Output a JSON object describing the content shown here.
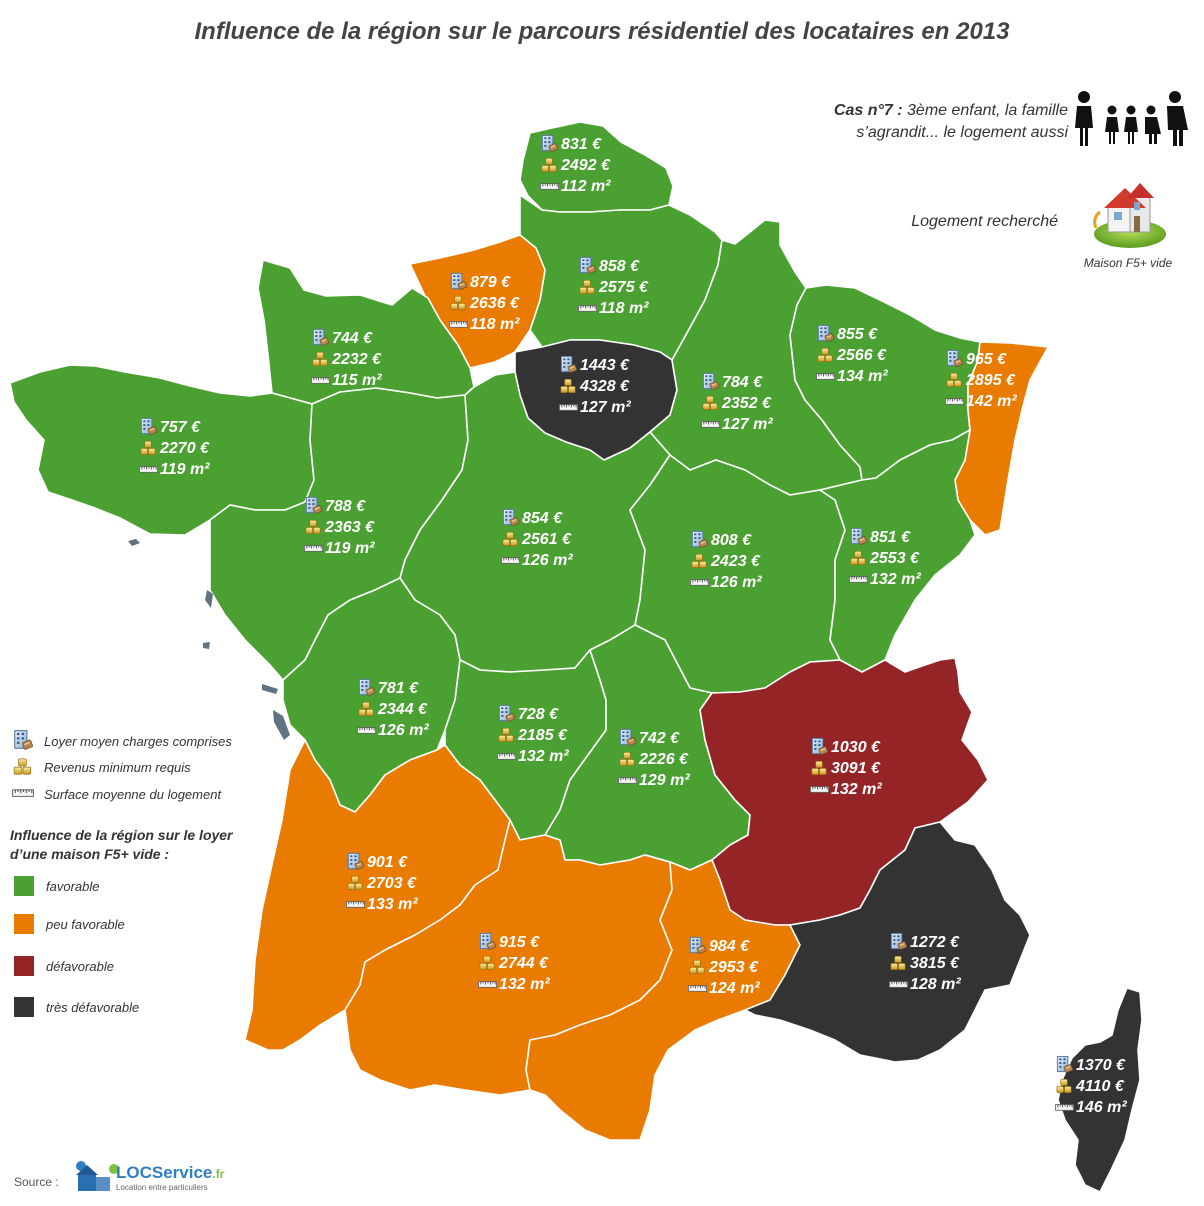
{
  "title": "Influence de la région sur le parcours résidentiel des locataires en 2013",
  "case": {
    "label": "Cas n°7 :",
    "text_line1": "3ème enfant, la famille",
    "text_line2": "s’agrandit... le logement aussi",
    "search_label": "Logement recherché",
    "house_caption": "Maison F5+ vide"
  },
  "legend": {
    "icons": [
      {
        "icon": "building-icon",
        "label": "Loyer moyen charges comprises"
      },
      {
        "icon": "coins-icon",
        "label": "Revenus minimum requis"
      },
      {
        "icon": "ruler-icon",
        "label": "Surface moyenne du logement"
      }
    ],
    "influence_title_line1": "Influence de la région sur le loyer",
    "influence_title_line2": "d’une maison F5+ vide :",
    "categories": [
      {
        "key": "favorable",
        "label": "favorable",
        "color": "#4ba032"
      },
      {
        "key": "peu_favorable",
        "label": "peu favorable",
        "color": "#e87b00"
      },
      {
        "key": "defavorable",
        "label": "défavorable",
        "color": "#952427"
      },
      {
        "key": "tres_defavorable",
        "label": "très défavorable",
        "color": "#333333"
      }
    ]
  },
  "colors": {
    "favorable": "#4ba032",
    "peu_favorable": "#e87b00",
    "defavorable": "#952427",
    "tres_defavorable": "#333333",
    "sea_islands": "#5f7383"
  },
  "regions": [
    {
      "id": "nord-pas-de-calais",
      "category": "favorable",
      "rent": "831 €",
      "income": "2492 €",
      "surface": "112 m²"
    },
    {
      "id": "picardie",
      "category": "favorable",
      "rent": "858 €",
      "income": "2575 €",
      "surface": "118 m²"
    },
    {
      "id": "haute-normandie",
      "category": "peu_favorable",
      "rent": "879 €",
      "income": "2636 €",
      "surface": "118 m²"
    },
    {
      "id": "basse-normandie",
      "category": "favorable",
      "rent": "744 €",
      "income": "2232 €",
      "surface": "115 m²"
    },
    {
      "id": "ile-de-france",
      "category": "tres_defavorable",
      "rent": "1443 €",
      "income": "4328 €",
      "surface": "127 m²"
    },
    {
      "id": "champagne-ardenne",
      "category": "favorable",
      "rent": "784 €",
      "income": "2352 €",
      "surface": "127 m²"
    },
    {
      "id": "lorraine",
      "category": "favorable",
      "rent": "855 €",
      "income": "2566 €",
      "surface": "134 m²"
    },
    {
      "id": "alsace",
      "category": "peu_favorable",
      "rent": "965 €",
      "income": "2895 €",
      "surface": "142 m²"
    },
    {
      "id": "bretagne",
      "category": "favorable",
      "rent": "757 €",
      "income": "2270 €",
      "surface": "119 m²"
    },
    {
      "id": "pays-de-la-loire",
      "category": "favorable",
      "rent": "788 €",
      "income": "2363 €",
      "surface": "119 m²"
    },
    {
      "id": "centre",
      "category": "favorable",
      "rent": "854 €",
      "income": "2561 €",
      "surface": "126 m²"
    },
    {
      "id": "bourgogne",
      "category": "favorable",
      "rent": "808 €",
      "income": "2423 €",
      "surface": "126 m²"
    },
    {
      "id": "franche-comte",
      "category": "favorable",
      "rent": "851 €",
      "income": "2553 €",
      "surface": "132 m²"
    },
    {
      "id": "poitou-charentes",
      "category": "favorable",
      "rent": "781 €",
      "income": "2344 €",
      "surface": "126 m²"
    },
    {
      "id": "limousin",
      "category": "favorable",
      "rent": "728 €",
      "income": "2185 €",
      "surface": "132 m²"
    },
    {
      "id": "auvergne",
      "category": "favorable",
      "rent": "742 €",
      "income": "2226 €",
      "surface": "129 m²"
    },
    {
      "id": "rhone-alpes",
      "category": "defavorable",
      "rent": "1030 €",
      "income": "3091 €",
      "surface": "132 m²"
    },
    {
      "id": "aquitaine",
      "category": "peu_favorable",
      "rent": "901 €",
      "income": "2703 €",
      "surface": "133 m²"
    },
    {
      "id": "midi-pyrenees",
      "category": "peu_favorable",
      "rent": "915 €",
      "income": "2744 €",
      "surface": "132 m²"
    },
    {
      "id": "languedoc-roussillon",
      "category": "peu_favorable",
      "rent": "984 €",
      "income": "2953 €",
      "surface": "124 m²"
    },
    {
      "id": "paca",
      "category": "tres_defavorable",
      "rent": "1272 €",
      "income": "3815 €",
      "surface": "128 m²"
    },
    {
      "id": "corse",
      "category": "tres_defavorable",
      "rent": "1370 €",
      "income": "4110 €",
      "surface": "146 m²"
    }
  ],
  "source": {
    "label": "Source :",
    "brand_loc": "LOC",
    "brand_service": "Service",
    "brand_tld": ".fr",
    "tagline": "Location entre particuliers"
  }
}
